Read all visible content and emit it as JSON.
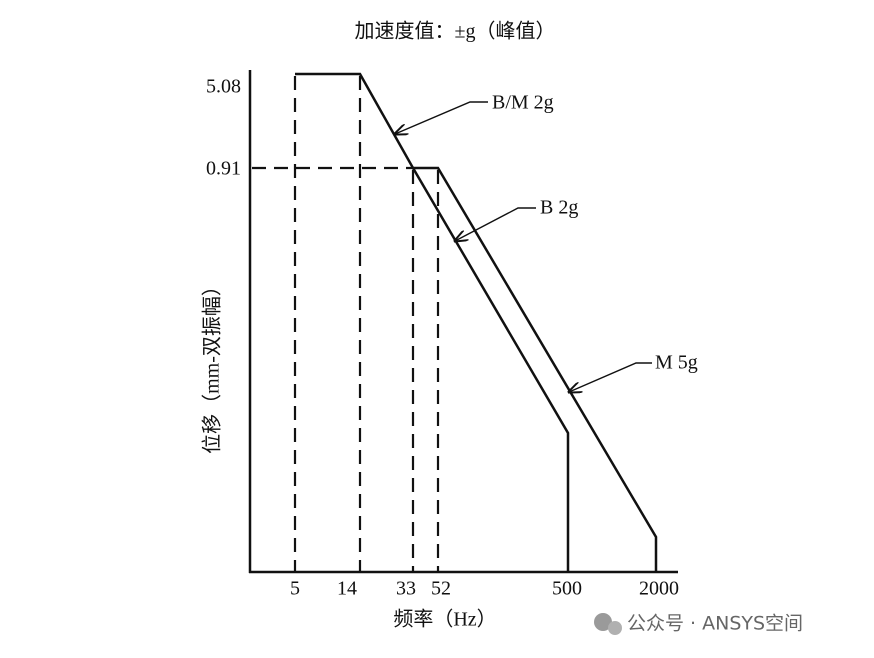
{
  "title": "加速度值：±g（峰值）",
  "y_axis": {
    "label": "位移（mm-双振幅）",
    "ticks": [
      "5.08",
      "0.91"
    ]
  },
  "x_axis": {
    "label": "频率（Hz）",
    "ticks": [
      "5",
      "14",
      "33",
      "52",
      "500",
      "2000"
    ]
  },
  "annotations": [
    "B/M  2g",
    "B  2g",
    "M  5g"
  ],
  "watermark": "公众号 · ANSYS空间"
}
